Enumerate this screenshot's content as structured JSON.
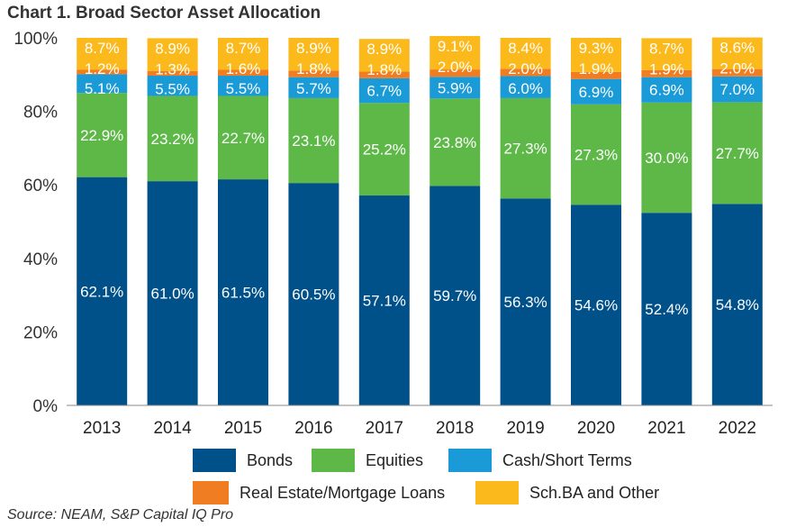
{
  "chart_data": {
    "type": "bar",
    "stacked": true,
    "title": "Chart 1. Broad Sector Asset Allocation",
    "xlabel": "",
    "ylabel": "",
    "ylim": [
      0,
      100
    ],
    "yticks": [
      "0%",
      "20%",
      "40%",
      "60%",
      "80%",
      "100%"
    ],
    "categories": [
      "2013",
      "2014",
      "2015",
      "2016",
      "2017",
      "2018",
      "2019",
      "2020",
      "2021",
      "2022"
    ],
    "series": [
      {
        "name": "Bonds",
        "color": "#00508a",
        "values": [
          62.1,
          61.0,
          61.5,
          60.5,
          57.1,
          59.7,
          56.3,
          54.6,
          52.4,
          54.8
        ],
        "labels": [
          "62.1%",
          "61.0%",
          "61.5%",
          "60.5%",
          "57.1%",
          "59.7%",
          "56.3%",
          "54.6%",
          "52.4%",
          "54.8%"
        ]
      },
      {
        "name": "Equities",
        "color": "#5db848",
        "values": [
          22.9,
          23.2,
          22.7,
          23.1,
          25.2,
          23.8,
          27.3,
          27.3,
          30.0,
          27.7
        ],
        "labels": [
          "22.9%",
          "23.2%",
          "22.7%",
          "23.1%",
          "25.2%",
          "23.8%",
          "27.3%",
          "27.3%",
          "30.0%",
          "27.7%"
        ]
      },
      {
        "name": "Cash/Short Terms",
        "color": "#1a9ad6",
        "values": [
          5.1,
          5.5,
          5.5,
          5.7,
          6.7,
          5.9,
          6.0,
          6.9,
          6.9,
          7.0
        ],
        "labels": [
          "5.1%",
          "5.5%",
          "5.5%",
          "5.7%",
          "6.7%",
          "5.9%",
          "6.0%",
          "6.9%",
          "6.9%",
          "7.0%"
        ]
      },
      {
        "name": "Real Estate/Mortgage Loans",
        "color": "#f07d22",
        "values": [
          1.2,
          1.3,
          1.6,
          1.8,
          1.8,
          2.0,
          2.0,
          1.9,
          1.9,
          2.0
        ],
        "labels": [
          "1.2%",
          "1.3%",
          "1.6%",
          "1.8%",
          "1.8%",
          "2.0%",
          "2.0%",
          "1.9%",
          "1.9%",
          "2.0%"
        ]
      },
      {
        "name": "Sch.BA and Other",
        "color": "#fbb91c",
        "values": [
          8.7,
          8.9,
          8.7,
          8.9,
          8.9,
          9.1,
          8.4,
          9.3,
          8.7,
          8.6
        ],
        "labels": [
          "8.7%",
          "8.9%",
          "8.7%",
          "8.9%",
          "8.9%",
          "9.1%",
          "8.4%",
          "9.3%",
          "8.7%",
          "8.6%"
        ]
      }
    ],
    "legend": "bottom",
    "grid": false,
    "source": "Source: NEAM, S&P Capital IQ Pro"
  }
}
